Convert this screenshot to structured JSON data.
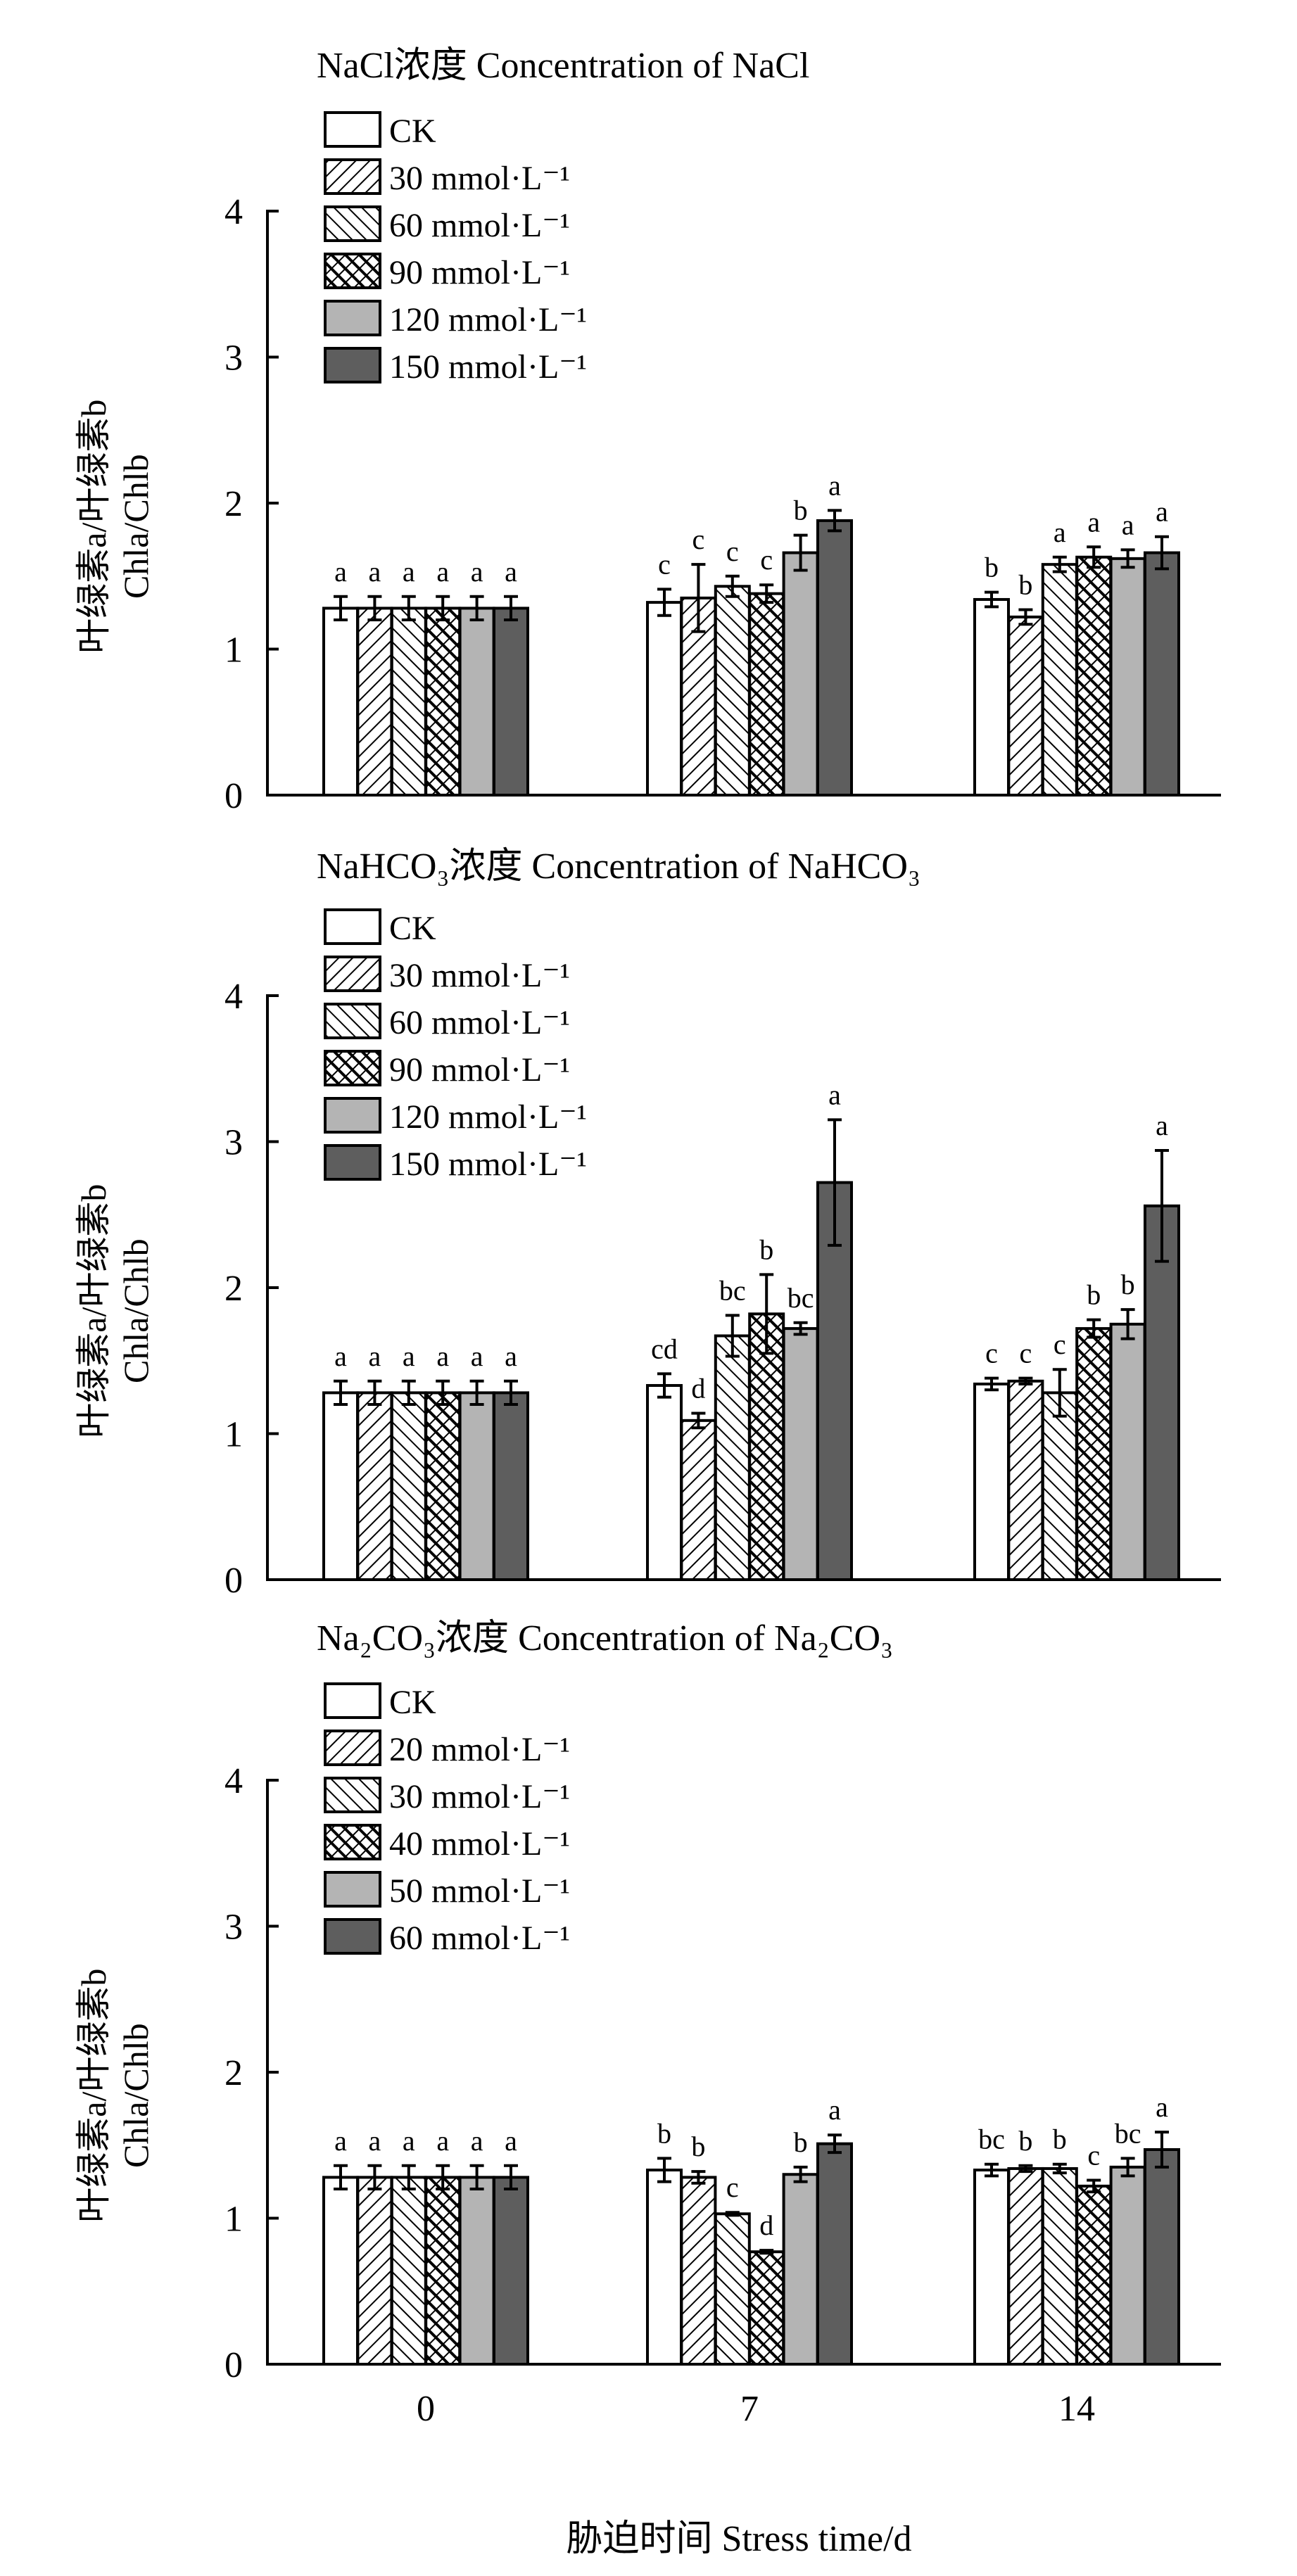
{
  "patterns": [
    {
      "id": "pat-white",
      "kind": "solid",
      "fill": "#ffffff"
    },
    {
      "id": "pat-fwd",
      "kind": "hatch",
      "rotate": 45,
      "fill": "#ffffff",
      "stroke": "#000000"
    },
    {
      "id": "pat-back",
      "kind": "hatch",
      "rotate": -45,
      "fill": "#ffffff",
      "stroke": "#000000"
    },
    {
      "id": "pat-cross",
      "kind": "cross",
      "fill": "#ffffff",
      "stroke": "#000000"
    },
    {
      "id": "pat-lgray",
      "kind": "solid",
      "fill": "#b4b4b4"
    },
    {
      "id": "pat-dgray",
      "kind": "solid",
      "fill": "#5e5e5e"
    }
  ],
  "xlabel": "胁迫时间 Stress time/d",
  "chart_data": [
    {
      "type": "bar",
      "title": "NaCl浓度 Concentration of NaCl",
      "ylabel": [
        "叶绿素a/叶绿素b",
        "Chla/Chlb"
      ],
      "categories": [
        "0",
        "7",
        "14"
      ],
      "ylim": [
        0,
        4
      ],
      "yticks": [
        0,
        1,
        2,
        3,
        4
      ],
      "legend_position": "top-left",
      "series": [
        {
          "name": "CK",
          "values": [
            1.28,
            1.32,
            1.34
          ],
          "err": [
            0.08,
            0.09,
            0.05
          ],
          "sig": [
            "a",
            "c",
            "b"
          ]
        },
        {
          "name": "30 mmol·L⁻¹",
          "values": [
            1.28,
            1.35,
            1.22
          ],
          "err": [
            0.08,
            0.23,
            0.05
          ],
          "sig": [
            "a",
            "c",
            "b"
          ]
        },
        {
          "name": "60 mmol·L⁻¹",
          "values": [
            1.28,
            1.43,
            1.58
          ],
          "err": [
            0.08,
            0.07,
            0.05
          ],
          "sig": [
            "a",
            "c",
            "a"
          ]
        },
        {
          "name": "90 mmol·L⁻¹",
          "values": [
            1.28,
            1.38,
            1.63
          ],
          "err": [
            0.08,
            0.06,
            0.07
          ],
          "sig": [
            "a",
            "c",
            "a"
          ]
        },
        {
          "name": "120 mmol·L⁻¹",
          "values": [
            1.28,
            1.66,
            1.62
          ],
          "err": [
            0.08,
            0.12,
            0.06
          ],
          "sig": [
            "a",
            "b",
            "a"
          ]
        },
        {
          "name": "150 mmol·L⁻¹",
          "values": [
            1.28,
            1.88,
            1.66
          ],
          "err": [
            0.08,
            0.07,
            0.11
          ],
          "sig": [
            "a",
            "a",
            "a"
          ]
        }
      ]
    },
    {
      "type": "bar",
      "title": "NaHCO₃浓度 Concentration of NaHCO₃",
      "ylabel": [
        "叶绿素a/叶绿素b",
        "Chla/Chlb"
      ],
      "categories": [
        "0",
        "7",
        "14"
      ],
      "ylim": [
        0,
        4
      ],
      "yticks": [
        0,
        1,
        2,
        3,
        4
      ],
      "legend_position": "top-left",
      "series": [
        {
          "name": "CK",
          "values": [
            1.28,
            1.33,
            1.34
          ],
          "err": [
            0.08,
            0.08,
            0.04
          ],
          "sig": [
            "a",
            "cd",
            "c"
          ]
        },
        {
          "name": "30 mmol·L⁻¹",
          "values": [
            1.28,
            1.09,
            1.36
          ],
          "err": [
            0.08,
            0.05,
            0.02
          ],
          "sig": [
            "a",
            "d",
            "c"
          ]
        },
        {
          "name": "60 mmol·L⁻¹",
          "values": [
            1.28,
            1.67,
            1.28
          ],
          "err": [
            0.08,
            0.14,
            0.16
          ],
          "sig": [
            "a",
            "bc",
            "c"
          ]
        },
        {
          "name": "90 mmol·L⁻¹",
          "values": [
            1.28,
            1.82,
            1.72
          ],
          "err": [
            0.08,
            0.27,
            0.06
          ],
          "sig": [
            "a",
            "b",
            "b"
          ]
        },
        {
          "name": "120 mmol·L⁻¹",
          "values": [
            1.28,
            1.72,
            1.75
          ],
          "err": [
            0.08,
            0.04,
            0.1
          ],
          "sig": [
            "a",
            "bc",
            "b"
          ]
        },
        {
          "name": "150 mmol·L⁻¹",
          "values": [
            1.28,
            2.72,
            2.56
          ],
          "err": [
            0.08,
            0.43,
            0.38
          ],
          "sig": [
            "a",
            "a",
            "a"
          ]
        }
      ]
    },
    {
      "type": "bar",
      "title": "Na₂CO₃浓度 Concentration of Na₂CO₃",
      "ylabel": [
        "叶绿素a/叶绿素b",
        "Chla/Chlb"
      ],
      "categories": [
        "0",
        "7",
        "14"
      ],
      "ylim": [
        0,
        4
      ],
      "yticks": [
        0,
        1,
        2,
        3,
        4
      ],
      "legend_position": "top-left",
      "series": [
        {
          "name": "CK",
          "values": [
            1.28,
            1.33,
            1.33
          ],
          "err": [
            0.08,
            0.08,
            0.04
          ],
          "sig": [
            "a",
            "b",
            "bc"
          ]
        },
        {
          "name": "20 mmol·L⁻¹",
          "values": [
            1.28,
            1.28,
            1.34
          ],
          "err": [
            0.08,
            0.04,
            0.02
          ],
          "sig": [
            "a",
            "b",
            "b"
          ]
        },
        {
          "name": "30 mmol·L⁻¹",
          "values": [
            1.28,
            1.03,
            1.34
          ],
          "err": [
            0.08,
            0.01,
            0.03
          ],
          "sig": [
            "a",
            "c",
            "b"
          ]
        },
        {
          "name": "40 mmol·L⁻¹",
          "values": [
            1.28,
            0.77,
            1.22
          ],
          "err": [
            0.08,
            0.01,
            0.04
          ],
          "sig": [
            "a",
            "d",
            "c"
          ]
        },
        {
          "name": "50 mmol·L⁻¹",
          "values": [
            1.28,
            1.3,
            1.35
          ],
          "err": [
            0.08,
            0.05,
            0.06
          ],
          "sig": [
            "a",
            "b",
            "bc"
          ]
        },
        {
          "name": "60 mmol·L⁻¹",
          "values": [
            1.28,
            1.51,
            1.47
          ],
          "err": [
            0.08,
            0.06,
            0.12
          ],
          "sig": [
            "a",
            "a",
            "a"
          ]
        }
      ]
    }
  ]
}
